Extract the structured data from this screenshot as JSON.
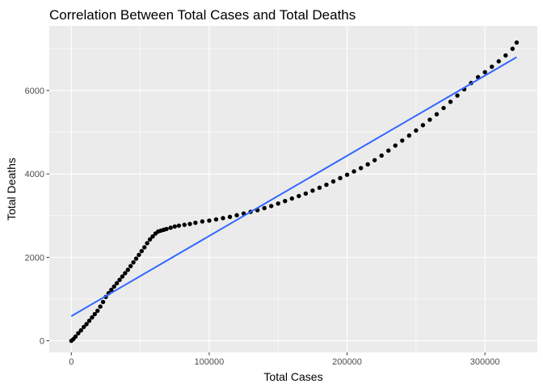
{
  "chart_data": {
    "type": "scatter",
    "title": "Correlation Between Total Cases and Total Deaths",
    "xlabel": "Total Cases",
    "ylabel": "Total Deaths",
    "xlim": [
      -16000,
      338000
    ],
    "ylim": [
      -280,
      7550
    ],
    "x_ticks": [
      0,
      100000,
      200000,
      300000
    ],
    "x_tick_labels": [
      "0",
      "100000",
      "200000",
      "300000"
    ],
    "y_ticks": [
      0,
      2000,
      4000,
      6000
    ],
    "y_tick_labels": [
      "0",
      "2000",
      "4000",
      "6000"
    ],
    "grid": true,
    "legend": "none",
    "colors": {
      "panel": "#ebebeb",
      "grid": "#ffffff",
      "points": "#000000",
      "fit_line": "#3366ff"
    },
    "series": [
      {
        "values": [
          [
            0,
            0
          ],
          [
            1500,
            40
          ],
          [
            3000,
            100
          ],
          [
            5000,
            180
          ],
          [
            7000,
            250
          ],
          [
            9000,
            330
          ],
          [
            11000,
            400
          ],
          [
            13000,
            480
          ],
          [
            15000,
            560
          ],
          [
            17000,
            640
          ],
          [
            19000,
            720
          ],
          [
            21000,
            820
          ],
          [
            23000,
            930
          ],
          [
            25000,
            1050
          ],
          [
            27000,
            1140
          ],
          [
            29000,
            1220
          ],
          [
            31000,
            1300
          ],
          [
            33000,
            1380
          ],
          [
            35000,
            1460
          ],
          [
            37000,
            1540
          ],
          [
            39000,
            1620
          ],
          [
            41000,
            1700
          ],
          [
            43000,
            1790
          ],
          [
            45000,
            1880
          ],
          [
            47000,
            1970
          ],
          [
            49000,
            2060
          ],
          [
            51000,
            2150
          ],
          [
            53000,
            2240
          ],
          [
            55000,
            2340
          ],
          [
            57000,
            2430
          ],
          [
            59000,
            2500
          ],
          [
            61000,
            2570
          ],
          [
            63000,
            2620
          ],
          [
            65000,
            2640
          ],
          [
            67000,
            2660
          ],
          [
            69000,
            2680
          ],
          [
            72000,
            2710
          ],
          [
            75000,
            2740
          ],
          [
            78000,
            2760
          ],
          [
            82000,
            2780
          ],
          [
            86000,
            2800
          ],
          [
            90000,
            2830
          ],
          [
            95000,
            2860
          ],
          [
            100000,
            2880
          ],
          [
            105000,
            2910
          ],
          [
            110000,
            2940
          ],
          [
            115000,
            2970
          ],
          [
            120000,
            3010
          ],
          [
            125000,
            3050
          ],
          [
            130000,
            3090
          ],
          [
            135000,
            3130
          ],
          [
            140000,
            3180
          ],
          [
            145000,
            3230
          ],
          [
            150000,
            3290
          ],
          [
            155000,
            3350
          ],
          [
            160000,
            3410
          ],
          [
            165000,
            3470
          ],
          [
            170000,
            3530
          ],
          [
            175000,
            3600
          ],
          [
            180000,
            3670
          ],
          [
            185000,
            3740
          ],
          [
            190000,
            3820
          ],
          [
            195000,
            3900
          ],
          [
            200000,
            3980
          ],
          [
            205000,
            4060
          ],
          [
            210000,
            4140
          ],
          [
            215000,
            4230
          ],
          [
            220000,
            4330
          ],
          [
            225000,
            4440
          ],
          [
            230000,
            4560
          ],
          [
            235000,
            4680
          ],
          [
            240000,
            4800
          ],
          [
            245000,
            4920
          ],
          [
            250000,
            5040
          ],
          [
            255000,
            5170
          ],
          [
            260000,
            5300
          ],
          [
            265000,
            5430
          ],
          [
            270000,
            5580
          ],
          [
            275000,
            5730
          ],
          [
            280000,
            5880
          ],
          [
            285000,
            6030
          ],
          [
            290000,
            6180
          ],
          [
            295000,
            6320
          ],
          [
            300000,
            6440
          ],
          [
            305000,
            6570
          ],
          [
            310000,
            6700
          ],
          [
            315000,
            6840
          ],
          [
            320000,
            7000
          ],
          [
            323000,
            7150
          ]
        ]
      }
    ],
    "fit_line": {
      "x": [
        0,
        323000
      ],
      "y": [
        590,
        6800
      ]
    }
  }
}
